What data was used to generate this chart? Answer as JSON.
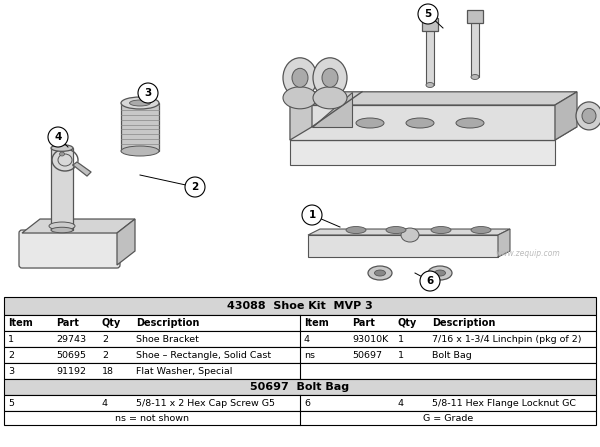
{
  "title": "43088  Shoe Kit  MVP 3",
  "bolt_bag_title": "50697  Bolt Bag",
  "watermark": "www.zequip.com",
  "bg_color": "#ffffff",
  "line_color": "#555555",
  "table_data": {
    "col_headers": [
      "Item",
      "Part",
      "Qty",
      "Description"
    ],
    "rows": [
      [
        "1",
        "29743",
        "2",
        "Shoe Bracket",
        "4",
        "93010K",
        "1",
        "7/16 x 1-3/4 Linchpin (pkg of 2)"
      ],
      [
        "2",
        "50695",
        "2",
        "Shoe – Rectangle, Solid Cast",
        "ns",
        "50697",
        "1",
        "Bolt Bag"
      ],
      [
        "3",
        "91192",
        "18",
        "Flat Washer, Special",
        "",
        "",
        "",
        ""
      ]
    ],
    "bolt_bag_rows": [
      [
        "5",
        "",
        "4",
        "5/8-11 x 2 Hex Cap Screw G5",
        "6",
        "",
        "4",
        "5/8-11 Hex Flange Locknut GC"
      ]
    ],
    "footer": [
      "ns = not shown",
      "G = Grade"
    ]
  }
}
